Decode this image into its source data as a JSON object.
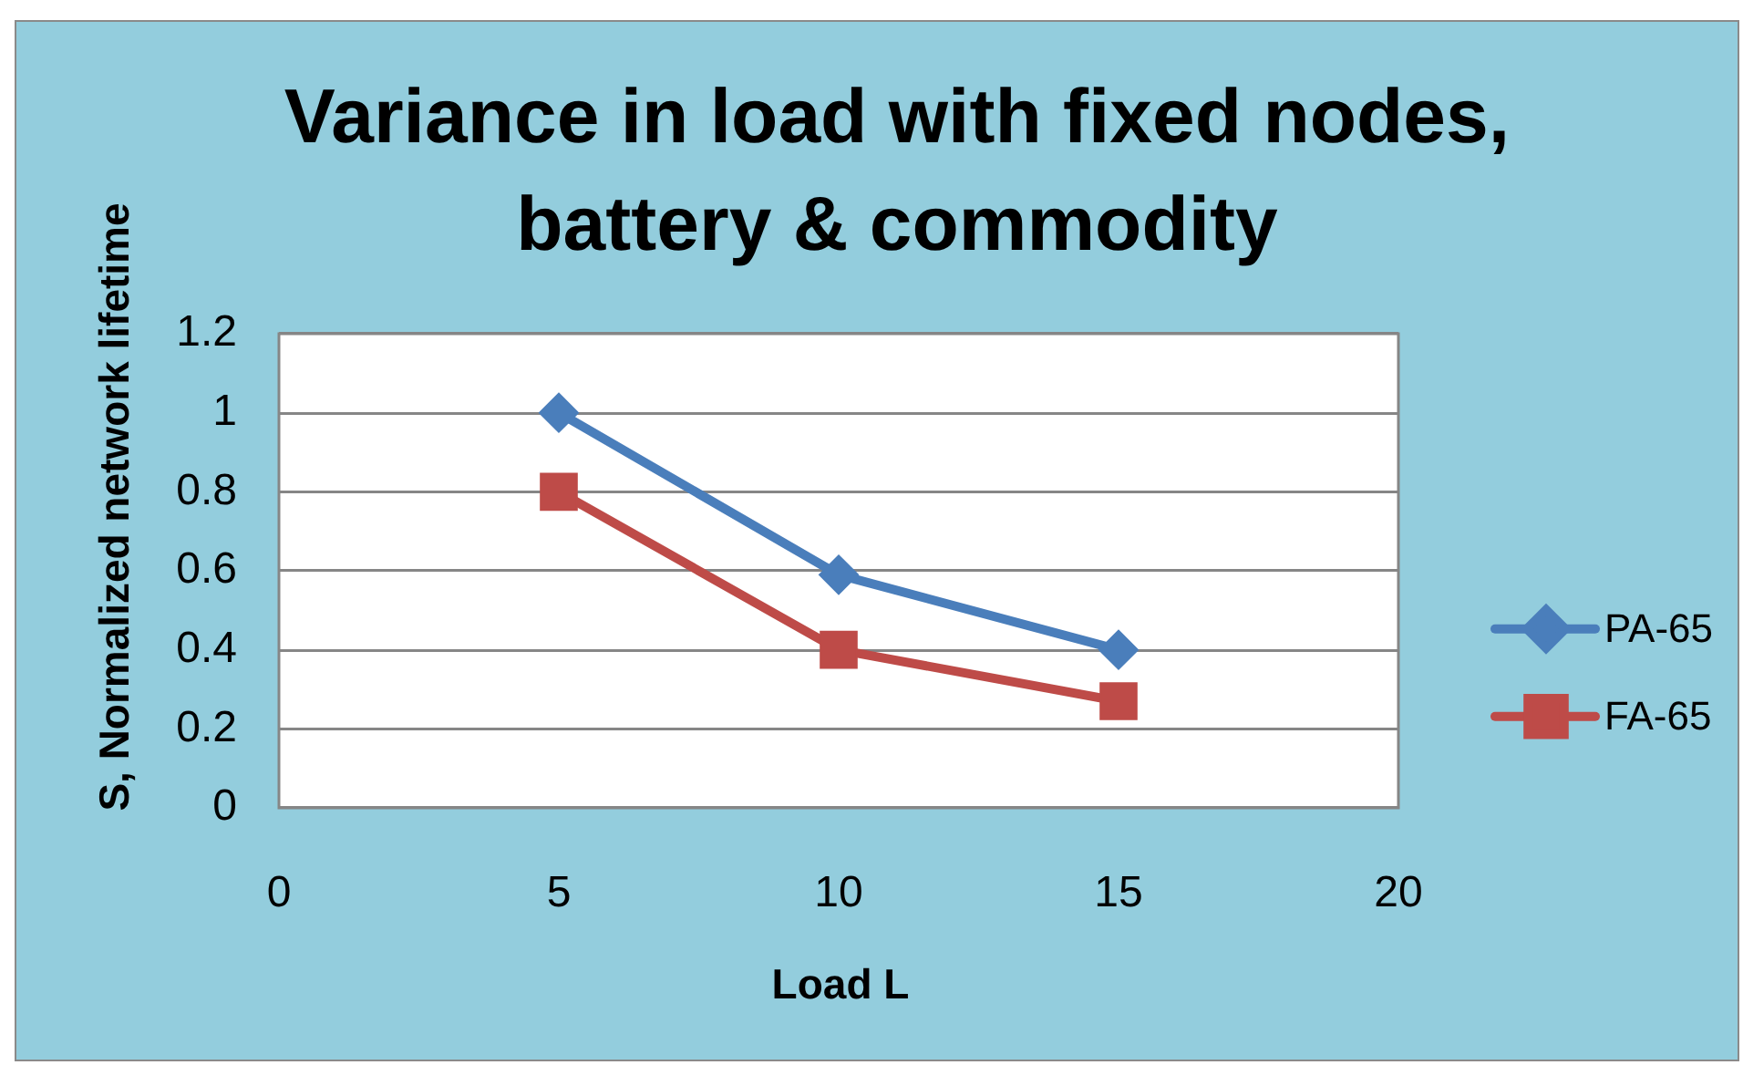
{
  "chart_data": {
    "type": "line",
    "title": "Variance in load with fixed nodes, battery & commodity",
    "xlabel": "Load L",
    "ylabel": "S, Normalized network lifetime",
    "x": [
      5,
      10,
      15
    ],
    "series": [
      {
        "name": "PA-65",
        "color": "#4a7ebb",
        "values": [
          1,
          0.59,
          0.4
        ],
        "marker": "diamond"
      },
      {
        "name": "FA-65",
        "color": "#be4b48",
        "values": [
          0.8,
          0.4,
          0.27
        ],
        "marker": "square"
      }
    ],
    "xlim": [
      0,
      20
    ],
    "xticks": [
      0,
      5,
      10,
      15,
      20
    ],
    "ylim": [
      0,
      1.2
    ],
    "yticks": [
      0,
      0.2,
      0.4,
      0.6,
      0.8,
      1,
      1.2
    ],
    "grid": "y",
    "legend": "right",
    "line_style": "solid"
  }
}
